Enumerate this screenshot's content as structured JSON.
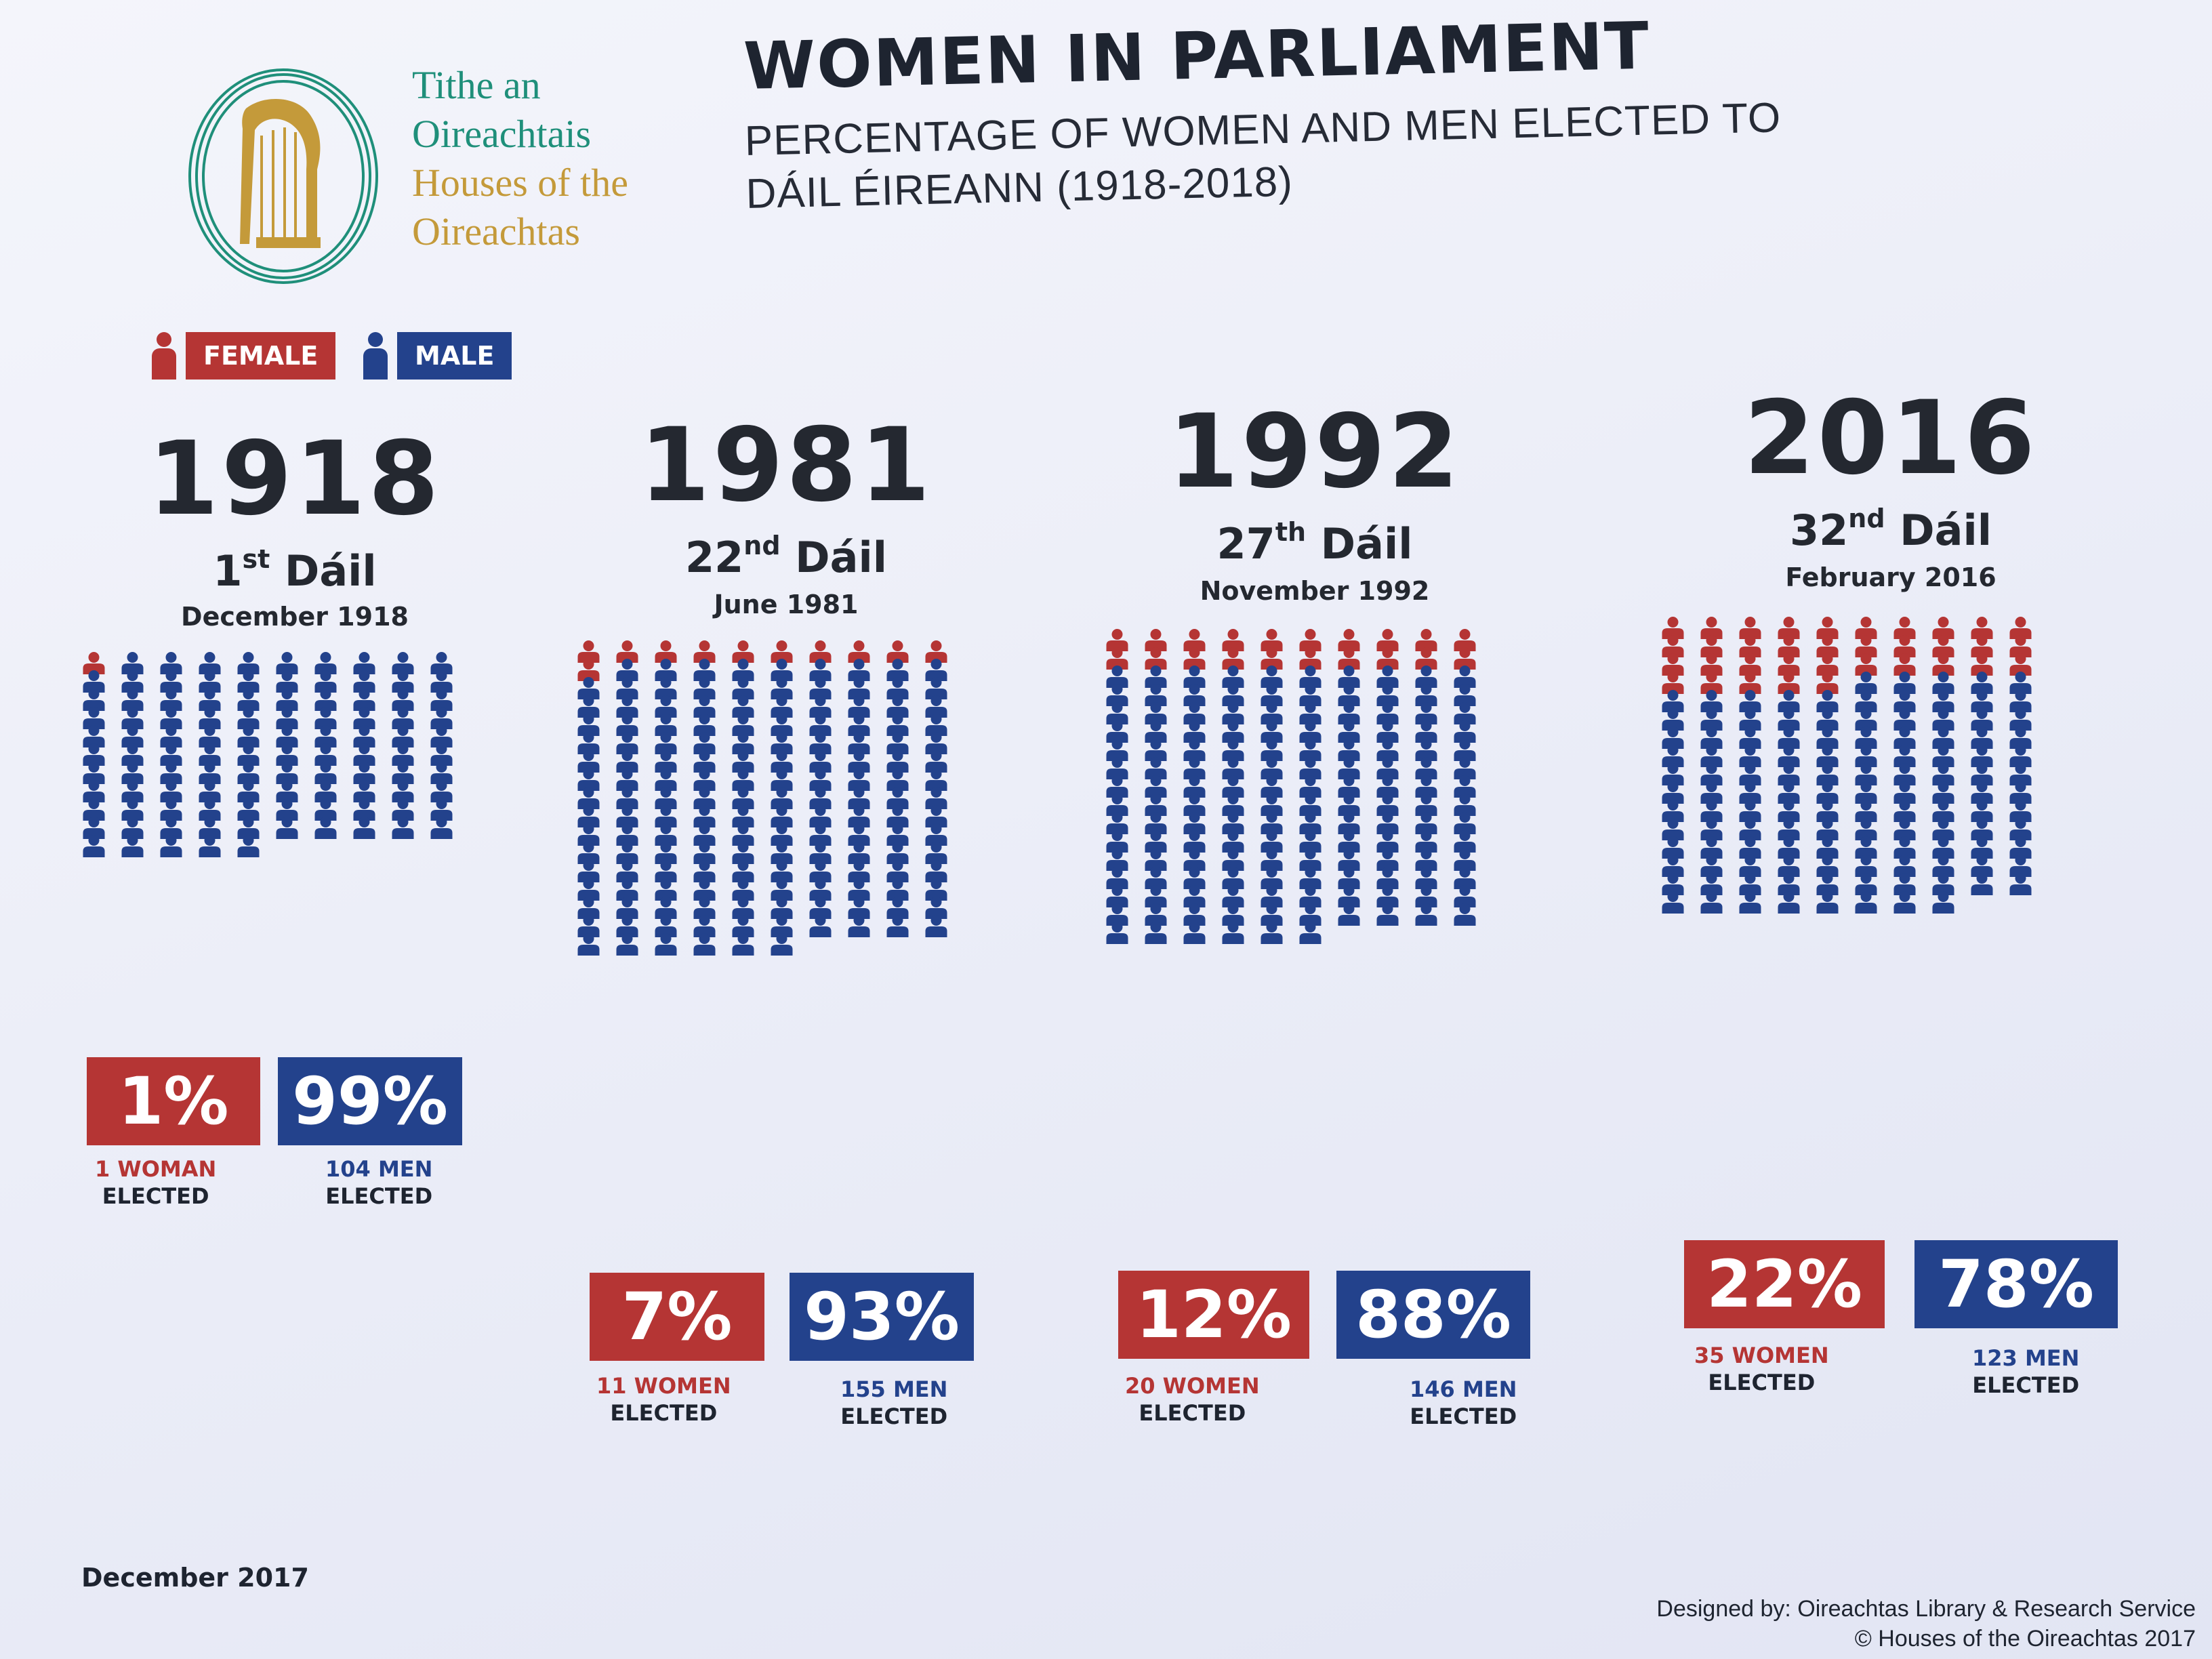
{
  "logo": {
    "line1": "Tithe an",
    "line2": "Oireachtais",
    "line3": "Houses of the",
    "line4": "Oireachtas",
    "icon": "harp-icon",
    "colors": {
      "irish": "#1f8f7a",
      "english": "#c49a3a"
    }
  },
  "header": {
    "title": "WOMEN IN PARLIAMENT",
    "subtitle_line1": "PERCENTAGE OF WOMEN AND MEN ELECTED TO",
    "subtitle_line2": "DÁIL ÉIREANN (1918-2018)"
  },
  "legend": {
    "female": "FEMALE",
    "male": "MALE",
    "female_icon": "female-person-icon",
    "male_icon": "male-person-icon"
  },
  "colors": {
    "female": "#b53534",
    "male": "#23428c"
  },
  "chart_data": {
    "type": "icon-array",
    "title": "WOMEN IN PARLIAMENT",
    "unit": "elected members (one icon per member)",
    "legend": [
      "FEMALE",
      "MALE"
    ],
    "series": [
      {
        "year": "1918",
        "dail_num": "1",
        "dail_suffix": "st",
        "dail_word": "Dáil",
        "date": "December 1918",
        "women": 1,
        "men": 104,
        "women_pct": "1%",
        "men_pct": "99%",
        "women_label": "1 WOMAN",
        "men_label": "104 MEN",
        "elected": "ELECTED"
      },
      {
        "year": "1981",
        "dail_num": "22",
        "dail_suffix": "nd",
        "dail_word": "Dáil",
        "date": "June 1981",
        "women": 11,
        "men": 155,
        "women_pct": "7%",
        "men_pct": "93%",
        "women_label": "11 WOMEN",
        "men_label": "155 MEN",
        "elected": "ELECTED"
      },
      {
        "year": "1992",
        "dail_num": "27",
        "dail_suffix": "th",
        "dail_word": "Dáil",
        "date": "November 1992",
        "women": 20,
        "men": 146,
        "women_pct": "12%",
        "men_pct": "88%",
        "women_label": "20 WOMEN",
        "men_label": "146 MEN",
        "elected": "ELECTED"
      },
      {
        "year": "2016",
        "dail_num": "32",
        "dail_suffix": "nd",
        "dail_word": "Dáil",
        "date": "February 2016",
        "women": 35,
        "men": 123,
        "women_pct": "22%",
        "men_pct": "78%",
        "women_label": "35 WOMEN",
        "men_label": "123 MEN",
        "elected": "ELECTED"
      }
    ]
  },
  "footer": {
    "date": "December 2017",
    "designed_by": "Designed by: Oireachtas Library & Research Service",
    "copyright": "© Houses of the Oireachtas 2017"
  }
}
